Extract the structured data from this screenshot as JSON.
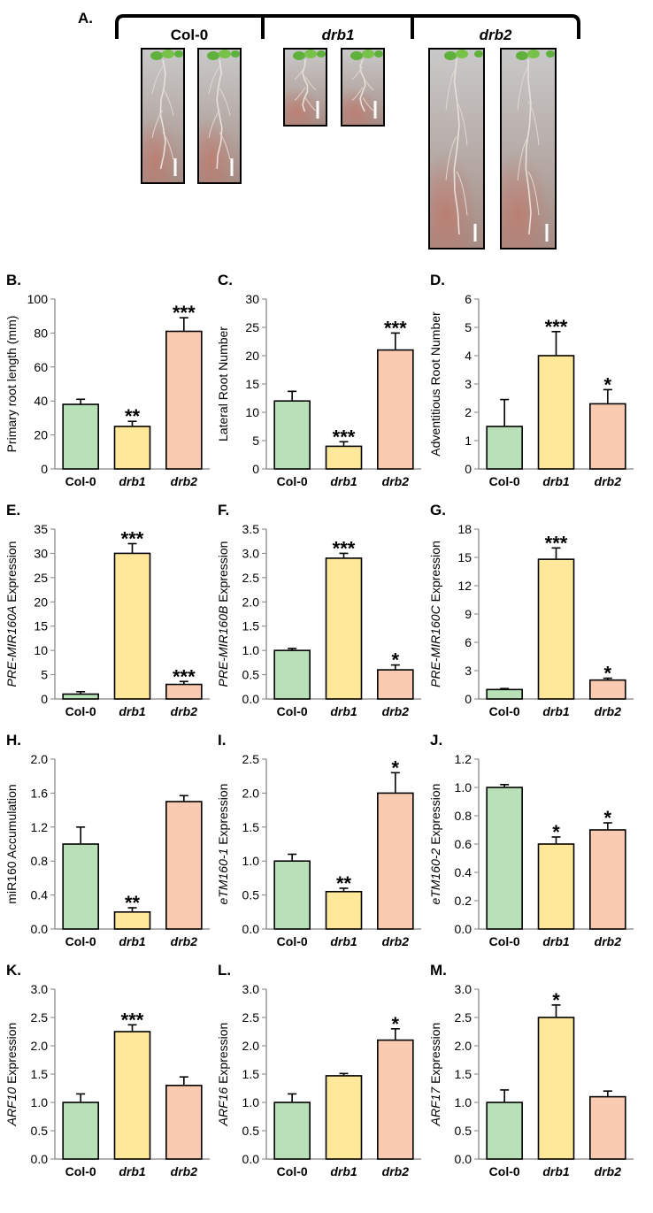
{
  "panel_a": {
    "label": "A.",
    "genotypes": [
      "Col-0",
      "drb1",
      "drb2"
    ],
    "genotype_italic": [
      false,
      true,
      true
    ]
  },
  "colors": {
    "bars": [
      "#b8e1b8",
      "#ffe89a",
      "#fbcbb1"
    ],
    "axis": "#808080"
  },
  "chart_data": [
    {
      "id": "B",
      "label": "B.",
      "type": "bar",
      "ylabel": "Primary root length (mm)",
      "ylabel_italic_prefix": "",
      "categories": [
        "Col-0",
        "drb1",
        "drb2"
      ],
      "values": [
        38,
        25,
        81
      ],
      "errors": [
        3,
        3,
        8
      ],
      "significance": [
        "",
        "**",
        "***"
      ],
      "ylim": [
        0,
        100
      ],
      "yticks": [
        0,
        20,
        40,
        60,
        80,
        100
      ],
      "tick_labels": [
        "0",
        "20",
        "40",
        "60",
        "80",
        "100"
      ]
    },
    {
      "id": "C",
      "label": "C.",
      "type": "bar",
      "ylabel": "Lateral Root Number",
      "ylabel_italic_prefix": "",
      "categories": [
        "Col-0",
        "drb1",
        "drb2"
      ],
      "values": [
        12,
        4,
        21
      ],
      "errors": [
        1.7,
        0.8,
        3
      ],
      "significance": [
        "",
        "***",
        "***"
      ],
      "ylim": [
        0,
        30
      ],
      "yticks": [
        0,
        5,
        10,
        15,
        20,
        25,
        30
      ],
      "tick_labels": [
        "0",
        "5",
        "10",
        "15",
        "20",
        "25",
        "30"
      ]
    },
    {
      "id": "D",
      "label": "D.",
      "type": "bar",
      "ylabel": "Adventitious Root Number",
      "ylabel_italic_prefix": "",
      "categories": [
        "Col-0",
        "drb1",
        "drb2"
      ],
      "values": [
        1.5,
        4.0,
        2.3
      ],
      "errors": [
        0.95,
        0.85,
        0.5
      ],
      "significance": [
        "",
        "***",
        "*"
      ],
      "ylim": [
        0,
        6
      ],
      "yticks": [
        0,
        1,
        2,
        3,
        4,
        5,
        6
      ],
      "tick_labels": [
        "0",
        "1",
        "2",
        "3",
        "4",
        "5",
        "6"
      ]
    },
    {
      "id": "E",
      "label": "E.",
      "type": "bar",
      "ylabel": " Expression",
      "ylabel_italic_prefix": "PRE-MIR160A",
      "categories": [
        "Col-0",
        "drb1",
        "drb2"
      ],
      "values": [
        1,
        30,
        3
      ],
      "errors": [
        0.5,
        2,
        0.6
      ],
      "significance": [
        "",
        "***",
        "***"
      ],
      "ylim": [
        0,
        35
      ],
      "yticks": [
        0,
        5,
        10,
        15,
        20,
        25,
        30,
        35
      ],
      "tick_labels": [
        "0",
        "5",
        "10",
        "15",
        "20",
        "25",
        "30",
        "35"
      ]
    },
    {
      "id": "F",
      "label": "F.",
      "type": "bar",
      "ylabel": " Expression",
      "ylabel_italic_prefix": "PRE-MIR160B",
      "categories": [
        "Col-0",
        "drb1",
        "drb2"
      ],
      "values": [
        1.0,
        2.9,
        0.6
      ],
      "errors": [
        0.04,
        0.1,
        0.1
      ],
      "significance": [
        "",
        "***",
        "*"
      ],
      "ylim": [
        0,
        3.5
      ],
      "yticks": [
        0,
        0.5,
        1,
        1.5,
        2,
        2.5,
        3,
        3.5
      ],
      "tick_labels": [
        "0.0",
        "0.5",
        "1.0",
        "1.5",
        "2.0",
        "2.5",
        "3.0",
        "3.5"
      ]
    },
    {
      "id": "G",
      "label": "G.",
      "type": "bar",
      "ylabel": " Expression",
      "ylabel_italic_prefix": "PRE-MIR160C",
      "categories": [
        "Col-0",
        "drb1",
        "drb2"
      ],
      "values": [
        1.0,
        14.8,
        2.0
      ],
      "errors": [
        0.1,
        1.2,
        0.2
      ],
      "significance": [
        "",
        "***",
        "*"
      ],
      "ylim": [
        0,
        18
      ],
      "yticks": [
        0,
        3,
        6,
        9,
        12,
        15,
        18
      ],
      "tick_labels": [
        "0",
        "3",
        "6",
        "9",
        "12",
        "15",
        "18"
      ]
    },
    {
      "id": "H",
      "label": "H.",
      "type": "bar",
      "ylabel": "miR160 Accumulation",
      "ylabel_italic_prefix": "",
      "categories": [
        "Col-0",
        "drb1",
        "drb2"
      ],
      "values": [
        1.0,
        0.2,
        1.5
      ],
      "errors": [
        0.2,
        0.05,
        0.07
      ],
      "significance": [
        "",
        "**",
        ""
      ],
      "ylim": [
        0,
        2
      ],
      "yticks": [
        0,
        0.4,
        0.8,
        1.2,
        1.6,
        2.0
      ],
      "tick_labels": [
        "0.0",
        "0.4",
        "0.8",
        "1.2",
        "1.6",
        "2.0"
      ]
    },
    {
      "id": "I",
      "label": "I.",
      "type": "bar",
      "ylabel": " Expression",
      "ylabel_italic_prefix": "eTM160-1",
      "categories": [
        "Col-0",
        "drb1",
        "drb2"
      ],
      "values": [
        1.0,
        0.55,
        2.0
      ],
      "errors": [
        0.1,
        0.05,
        0.3
      ],
      "significance": [
        "",
        "**",
        "*"
      ],
      "ylim": [
        0,
        2.5
      ],
      "yticks": [
        0,
        0.5,
        1,
        1.5,
        2,
        2.5
      ],
      "tick_labels": [
        "0.0",
        "0.5",
        "1.0",
        "1.5",
        "2.0",
        "2.5"
      ]
    },
    {
      "id": "J",
      "label": "J.",
      "type": "bar",
      "ylabel": " Expression",
      "ylabel_italic_prefix": "eTM160-2",
      "categories": [
        "Col-0",
        "drb1",
        "drb2"
      ],
      "values": [
        1.0,
        0.6,
        0.7
      ],
      "errors": [
        0.02,
        0.05,
        0.05
      ],
      "significance": [
        "",
        "*",
        "*"
      ],
      "ylim": [
        0,
        1.2
      ],
      "yticks": [
        0,
        0.2,
        0.4,
        0.6,
        0.8,
        1.0,
        1.2
      ],
      "tick_labels": [
        "0.0",
        "0.2",
        "0.4",
        "0.6",
        "0.8",
        "1.0",
        "1.2"
      ]
    },
    {
      "id": "K",
      "label": "K.",
      "type": "bar",
      "ylabel": " Expression",
      "ylabel_italic_prefix": "ARF10",
      "categories": [
        "Col-0",
        "drb1",
        "drb2"
      ],
      "values": [
        1.0,
        2.25,
        1.3
      ],
      "errors": [
        0.15,
        0.12,
        0.15
      ],
      "significance": [
        "",
        "***",
        ""
      ],
      "ylim": [
        0,
        3
      ],
      "yticks": [
        0,
        0.5,
        1,
        1.5,
        2,
        2.5,
        3
      ],
      "tick_labels": [
        "0.0",
        "0.5",
        "1.0",
        "1.5",
        "2.0",
        "2.5",
        "3.0"
      ]
    },
    {
      "id": "L",
      "label": "L.",
      "type": "bar",
      "ylabel": " Expression",
      "ylabel_italic_prefix": "ARF16",
      "categories": [
        "Col-0",
        "drb1",
        "drb2"
      ],
      "values": [
        1.0,
        1.47,
        2.1
      ],
      "errors": [
        0.15,
        0.04,
        0.2
      ],
      "significance": [
        "",
        "",
        "*"
      ],
      "ylim": [
        0,
        3
      ],
      "yticks": [
        0,
        0.5,
        1,
        1.5,
        2,
        2.5,
        3
      ],
      "tick_labels": [
        "0.0",
        "0.5",
        "1.0",
        "1.5",
        "2.0",
        "2.5",
        "3.0"
      ]
    },
    {
      "id": "M",
      "label": "M.",
      "type": "bar",
      "ylabel": " Expression",
      "ylabel_italic_prefix": "ARF17",
      "categories": [
        "Col-0",
        "drb1",
        "drb2"
      ],
      "values": [
        1.0,
        2.5,
        1.1
      ],
      "errors": [
        0.22,
        0.22,
        0.1
      ],
      "significance": [
        "",
        "*",
        ""
      ],
      "ylim": [
        0,
        3
      ],
      "yticks": [
        0,
        0.5,
        1,
        1.5,
        2,
        2.5,
        3
      ],
      "tick_labels": [
        "0.0",
        "0.5",
        "1.0",
        "1.5",
        "2.0",
        "2.5",
        "3.0"
      ]
    }
  ]
}
